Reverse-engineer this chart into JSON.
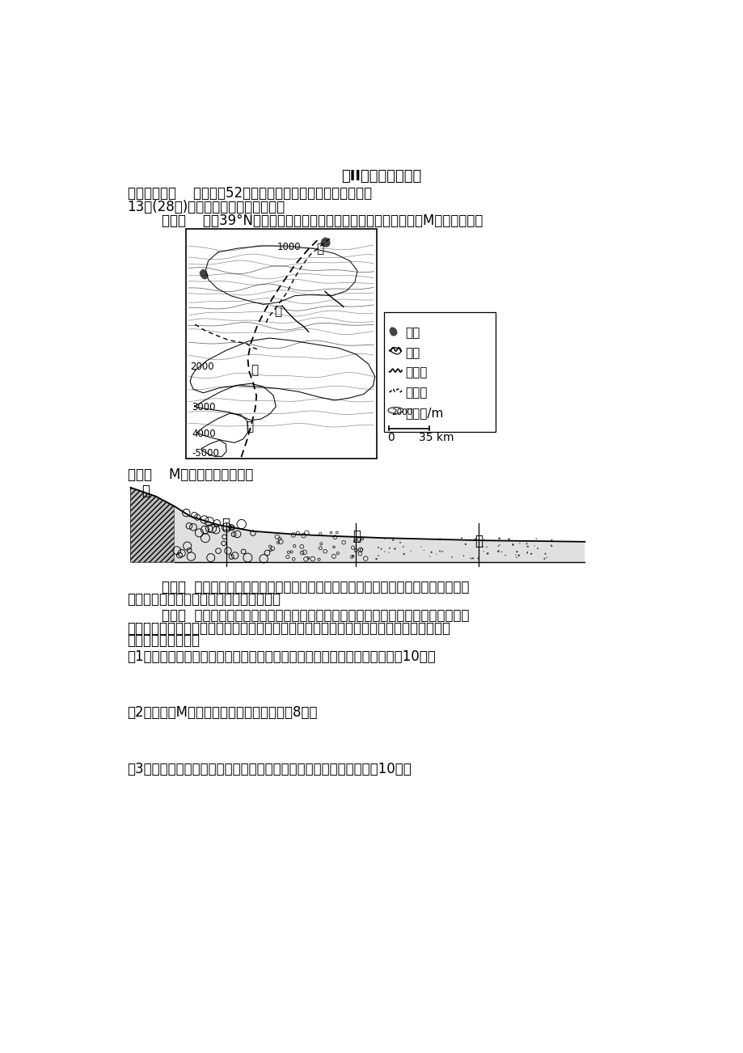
{
  "bg_color": "#ffffff",
  "title_section": "第II卷（非选择题）",
  "line1": "二．非选择题    本大题共52分，请将答案写在答题卷相应位置。",
  "line2": "13．(28分)根据以下资料，回答问题。",
  "line3": "        材料一    我国39°N附近某区域示意图（甲、乙、丙、丁四河段均为M河一部分）。",
  "material2_label": "材料二    M河段地形剖面示意图",
  "material3_line1": "        材料三  时令河，又称作季节河、间歇性河流，指河流在枯水季节，河水断流、河床裸",
  "material3_line2": "露；丰水季节，形成水流，甚至洪水奔腾。",
  "material4_line1": "        材料四  近年来该地区为克服自然条件对种植春小麦的不利影响，采取覆盖免耕技术，",
  "material4_line2": "即收割时留茬，收割后将秸秆均匀撒在地表，次年春播时采用免耕播种机播种，使春小麦产",
  "material4_line3": "量和质量显著提高。",
  "q1": "（1）说出乙处鹅卵石堆积区沉积物颗粒大小分布规律，并描述形成过程。（10分）",
  "q2": "（2）试解释M河乙河段为时令河的原因。（8分）",
  "q3": "（3）分析该地区采取的农业生产方式对农业土地条件的改善作用．（10分）"
}
